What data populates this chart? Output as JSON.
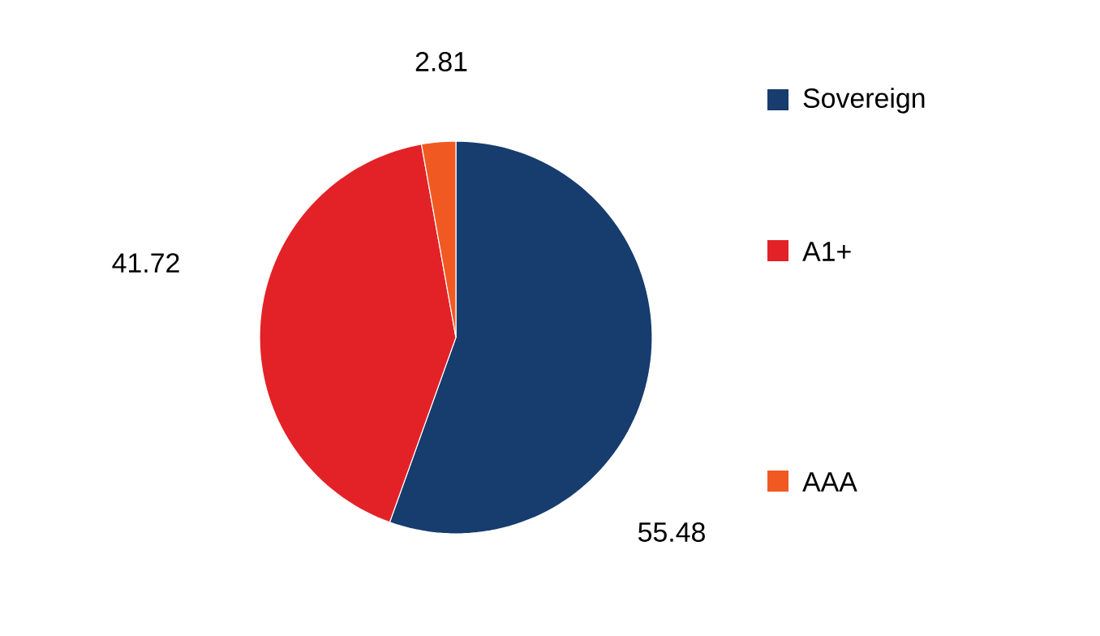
{
  "chart_data": {
    "type": "pie",
    "categories": [
      "Sovereign",
      "A1+",
      "AAA"
    ],
    "values": [
      55.48,
      41.72,
      2.81
    ],
    "colors": [
      "#173c6e",
      "#e32227",
      "#f05a22"
    ],
    "data_labels": true,
    "legend": "right"
  }
}
